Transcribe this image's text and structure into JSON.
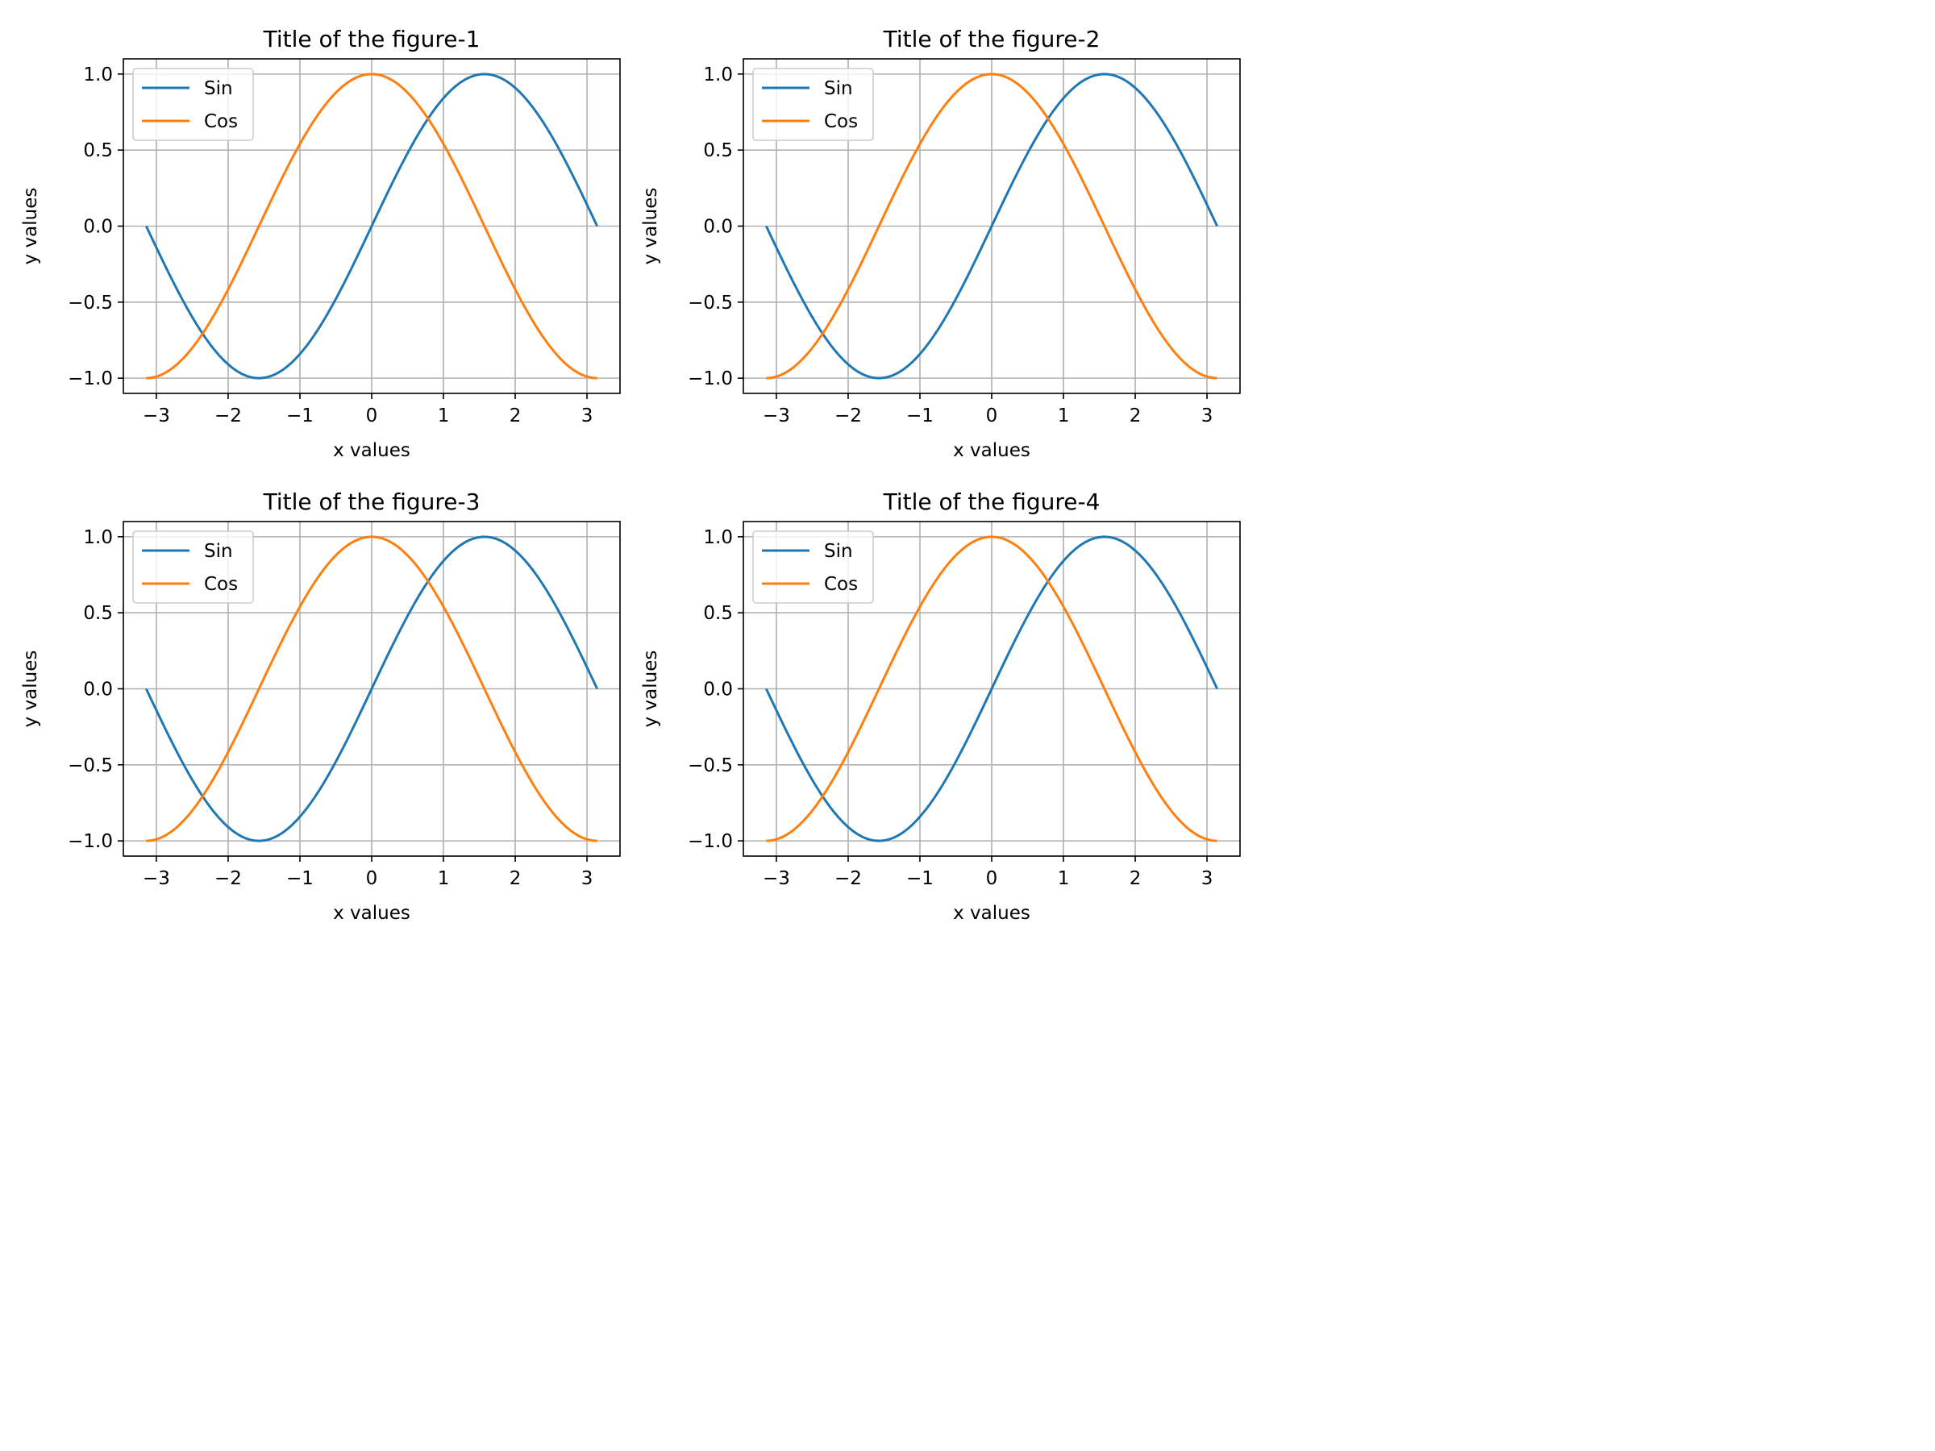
{
  "chart_data": [
    {
      "type": "line",
      "title": "Title of the figure-1",
      "xlabel": "x values",
      "ylabel": "y values",
      "xlim": [
        -3.46,
        3.46
      ],
      "ylim": [
        -1.1,
        1.1
      ],
      "xticks": [
        -3,
        -2,
        -1,
        0,
        1,
        2,
        3
      ],
      "xtick_labels": [
        "−3",
        "−2",
        "−1",
        "0",
        "1",
        "2",
        "3"
      ],
      "yticks": [
        -1.0,
        -0.5,
        0.0,
        0.5,
        1.0
      ],
      "ytick_labels": [
        "−1.0",
        "−0.5",
        "0.0",
        "0.5",
        "1.0"
      ],
      "grid": true,
      "legend": "upper-left",
      "x": {
        "start": -3.14159,
        "end": 3.14159,
        "samples": 100
      },
      "series": [
        {
          "name": "Sin",
          "function": "sin",
          "color": "#1f77b4",
          "values_at_ticks": [
            -0.141,
            -0.909,
            -0.841,
            0.0,
            0.841,
            0.909,
            0.141
          ]
        },
        {
          "name": "Cos",
          "function": "cos",
          "color": "#ff7f0e",
          "values_at_ticks": [
            -0.99,
            -0.416,
            0.54,
            1.0,
            0.54,
            -0.416,
            -0.99
          ]
        }
      ]
    },
    {
      "type": "line",
      "title": "Title of the figure-2",
      "xlabel": "x values",
      "ylabel": "y values",
      "xlim": [
        -3.46,
        3.46
      ],
      "ylim": [
        -1.1,
        1.1
      ],
      "xticks": [
        -3,
        -2,
        -1,
        0,
        1,
        2,
        3
      ],
      "xtick_labels": [
        "−3",
        "−2",
        "−1",
        "0",
        "1",
        "2",
        "3"
      ],
      "yticks": [
        -1.0,
        -0.5,
        0.0,
        0.5,
        1.0
      ],
      "ytick_labels": [
        "−1.0",
        "−0.5",
        "0.0",
        "0.5",
        "1.0"
      ],
      "grid": true,
      "legend": "upper-left",
      "x": {
        "start": -3.14159,
        "end": 3.14159,
        "samples": 100
      },
      "series": [
        {
          "name": "Sin",
          "function": "sin",
          "color": "#1f77b4",
          "values_at_ticks": [
            -0.141,
            -0.909,
            -0.841,
            0.0,
            0.841,
            0.909,
            0.141
          ]
        },
        {
          "name": "Cos",
          "function": "cos",
          "color": "#ff7f0e",
          "values_at_ticks": [
            -0.99,
            -0.416,
            0.54,
            1.0,
            0.54,
            -0.416,
            -0.99
          ]
        }
      ]
    },
    {
      "type": "line",
      "title": "Title of the figure-3",
      "xlabel": "x values",
      "ylabel": "y values",
      "xlim": [
        -3.46,
        3.46
      ],
      "ylim": [
        -1.1,
        1.1
      ],
      "xticks": [
        -3,
        -2,
        -1,
        0,
        1,
        2,
        3
      ],
      "xtick_labels": [
        "−3",
        "−2",
        "−1",
        "0",
        "1",
        "2",
        "3"
      ],
      "yticks": [
        -1.0,
        -0.5,
        0.0,
        0.5,
        1.0
      ],
      "ytick_labels": [
        "−1.0",
        "−0.5",
        "0.0",
        "0.5",
        "1.0"
      ],
      "grid": true,
      "legend": "upper-left",
      "x": {
        "start": -3.14159,
        "end": 3.14159,
        "samples": 100
      },
      "series": [
        {
          "name": "Sin",
          "function": "sin",
          "color": "#1f77b4",
          "values_at_ticks": [
            -0.141,
            -0.909,
            -0.841,
            0.0,
            0.841,
            0.909,
            0.141
          ]
        },
        {
          "name": "Cos",
          "function": "cos",
          "color": "#ff7f0e",
          "values_at_ticks": [
            -0.99,
            -0.416,
            0.54,
            1.0,
            0.54,
            -0.416,
            -0.99
          ]
        }
      ]
    },
    {
      "type": "line",
      "title": "Title of the figure-4",
      "xlabel": "x values",
      "ylabel": "y values",
      "xlim": [
        -3.46,
        3.46
      ],
      "ylim": [
        -1.1,
        1.1
      ],
      "xticks": [
        -3,
        -2,
        -1,
        0,
        1,
        2,
        3
      ],
      "xtick_labels": [
        "−3",
        "−2",
        "−1",
        "0",
        "1",
        "2",
        "3"
      ],
      "yticks": [
        -1.0,
        -0.5,
        0.0,
        0.5,
        1.0
      ],
      "ytick_labels": [
        "−1.0",
        "−0.5",
        "0.0",
        "0.5",
        "1.0"
      ],
      "grid": true,
      "legend": "upper-left",
      "x": {
        "start": -3.14159,
        "end": 3.14159,
        "samples": 100
      },
      "series": [
        {
          "name": "Sin",
          "function": "sin",
          "color": "#1f77b4",
          "values_at_ticks": [
            -0.141,
            -0.909,
            -0.841,
            0.0,
            0.841,
            0.909,
            0.141
          ]
        },
        {
          "name": "Cos",
          "function": "cos",
          "color": "#ff7f0e",
          "values_at_ticks": [
            -0.99,
            -0.416,
            0.54,
            1.0,
            0.54,
            -0.416,
            -0.99
          ]
        }
      ]
    }
  ]
}
